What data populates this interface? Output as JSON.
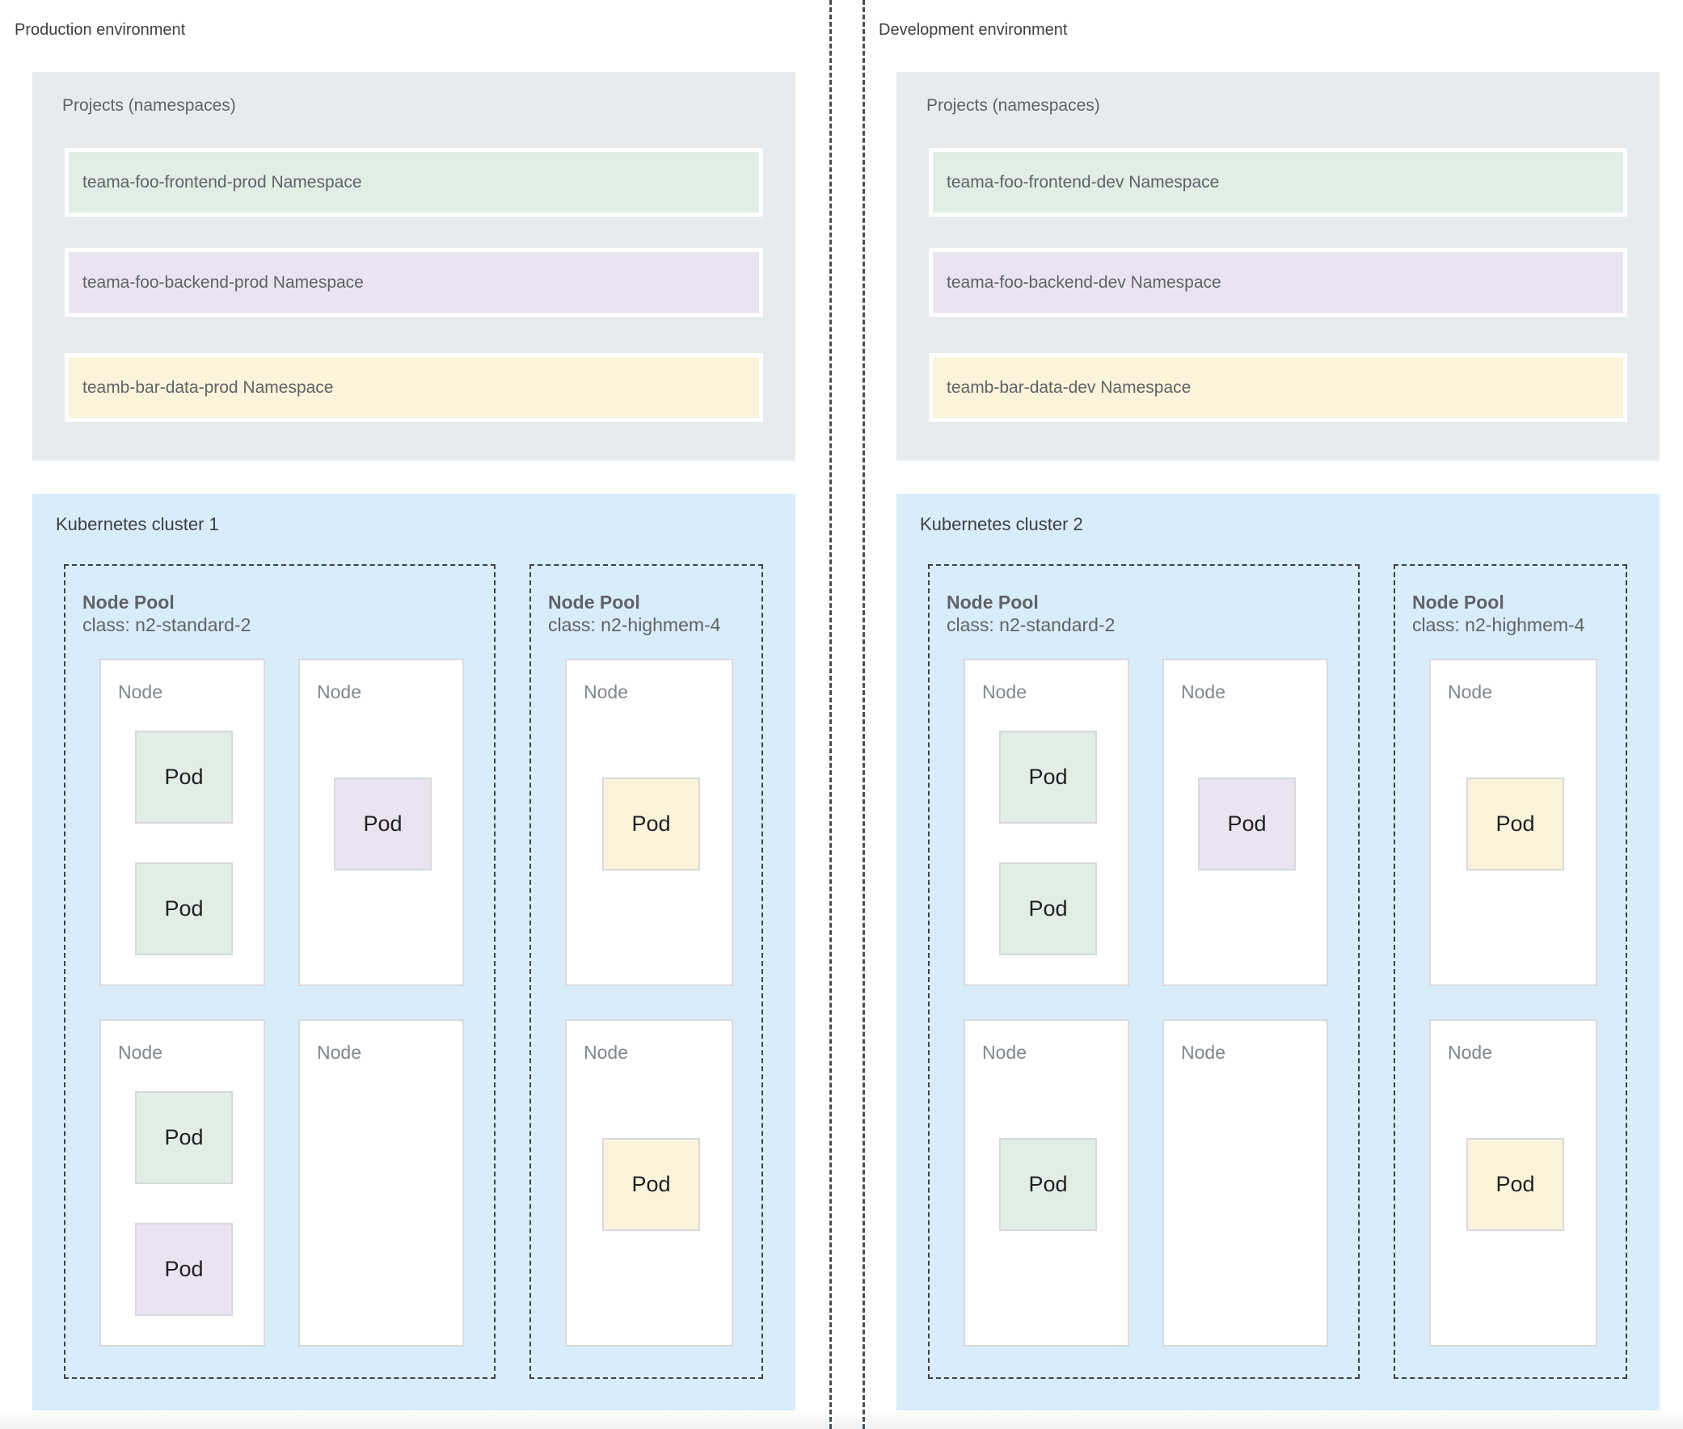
{
  "colors": {
    "green": "#e0eee6",
    "purple": "#eae4f2",
    "yellow": "#fcf4da",
    "cluster_blue": "#d9ecf9",
    "container_gray": "#e8ebee"
  },
  "environments": [
    {
      "label": "Production environment",
      "projects": {
        "title": "Projects (namespaces)",
        "namespaces": [
          {
            "label": "teama-foo-frontend-prod Namespace",
            "color": "green"
          },
          {
            "label": "teama-foo-backend-prod Namespace",
            "color": "purple"
          },
          {
            "label": "teamb-bar-data-prod Namespace",
            "color": "yellow"
          }
        ]
      },
      "cluster": {
        "title": "Kubernetes cluster 1",
        "node_pools": [
          {
            "title": "Node Pool",
            "class_label": "class: n2-standard-2",
            "nodes": [
              {
                "label": "Node",
                "pods": [
                  {
                    "label": "Pod",
                    "color": "green",
                    "slot": "top"
                  },
                  {
                    "label": "Pod",
                    "color": "green",
                    "slot": "bottom"
                  }
                ]
              },
              {
                "label": "Node",
                "pods": [
                  {
                    "label": "Pod",
                    "color": "purple",
                    "slot": "center"
                  }
                ]
              },
              {
                "label": "Node",
                "pods": [
                  {
                    "label": "Pod",
                    "color": "green",
                    "slot": "top"
                  },
                  {
                    "label": "Pod",
                    "color": "purple",
                    "slot": "bottom"
                  }
                ]
              },
              {
                "label": "Node",
                "pods": []
              }
            ]
          },
          {
            "title": "Node Pool",
            "class_label": "class: n2-highmem-4",
            "nodes": [
              {
                "label": "Node",
                "pods": [
                  {
                    "label": "Pod",
                    "color": "yellow",
                    "slot": "center"
                  }
                ]
              },
              {
                "label": "Node",
                "pods": [
                  {
                    "label": "Pod",
                    "color": "yellow",
                    "slot": "center"
                  }
                ]
              }
            ]
          }
        ]
      }
    },
    {
      "label": "Development environment",
      "projects": {
        "title": "Projects (namespaces)",
        "namespaces": [
          {
            "label": "teama-foo-frontend-dev Namespace",
            "color": "green"
          },
          {
            "label": "teama-foo-backend-dev Namespace",
            "color": "purple"
          },
          {
            "label": "teamb-bar-data-dev Namespace",
            "color": "yellow"
          }
        ]
      },
      "cluster": {
        "title": "Kubernetes cluster 2",
        "node_pools": [
          {
            "title": "Node Pool",
            "class_label": "class: n2-standard-2",
            "nodes": [
              {
                "label": "Node",
                "pods": [
                  {
                    "label": "Pod",
                    "color": "green",
                    "slot": "top"
                  },
                  {
                    "label": "Pod",
                    "color": "green",
                    "slot": "bottom"
                  }
                ]
              },
              {
                "label": "Node",
                "pods": [
                  {
                    "label": "Pod",
                    "color": "purple",
                    "slot": "center"
                  }
                ]
              },
              {
                "label": "Node",
                "pods": [
                  {
                    "label": "Pod",
                    "color": "green",
                    "slot": "center"
                  }
                ]
              },
              {
                "label": "Node",
                "pods": []
              }
            ]
          },
          {
            "title": "Node Pool",
            "class_label": "class: n2-highmem-4",
            "nodes": [
              {
                "label": "Node",
                "pods": [
                  {
                    "label": "Pod",
                    "color": "yellow",
                    "slot": "center"
                  }
                ]
              },
              {
                "label": "Node",
                "pods": [
                  {
                    "label": "Pod",
                    "color": "yellow",
                    "slot": "center"
                  }
                ]
              }
            ]
          }
        ]
      }
    }
  ]
}
